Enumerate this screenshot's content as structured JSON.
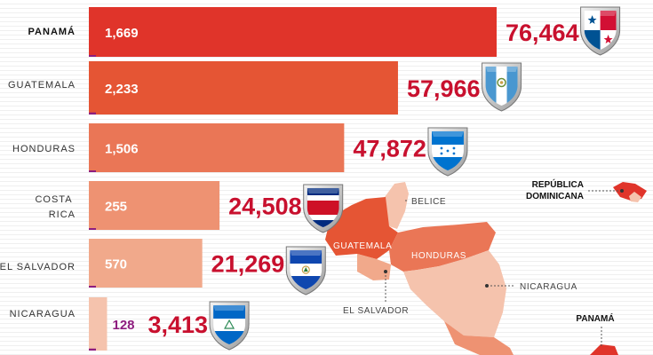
{
  "chart_data": {
    "type": "bar",
    "categories": [
      "PANAMÁ",
      "GUATEMALA",
      "HONDURAS",
      "COSTA RICA",
      "EL SALVADOR",
      "NICARAGUA"
    ],
    "series": [
      {
        "values": [
          1669,
          2233,
          1506,
          255,
          570,
          128
        ]
      },
      {
        "values": [
          76464,
          57966,
          47872,
          24508,
          21269,
          3413
        ]
      }
    ],
    "bar_labels": [
      "1,669",
      "2,233",
      "1,506",
      "255",
      "570",
      "128"
    ],
    "totals": [
      "76,464",
      "57,966",
      "47,872",
      "24,508",
      "21,269",
      "3,413"
    ],
    "colors": {
      "bars": [
        "#e0342a",
        "#e55534",
        "#ea7656",
        "#ee9272",
        "#f1a98b",
        "#f5c3ad"
      ],
      "accent": "#8e1d7f",
      "value_red": "#c8102e"
    }
  },
  "map": {
    "labels": [
      "BELICE",
      "GUATEMALA",
      "HONDURAS",
      "EL SALVADOR",
      "NICARAGUA",
      "REPÚBLICA",
      "DOMINICANA",
      "PANAMÁ"
    ]
  },
  "icons": [
    "panama-flag-icon",
    "guatemala-flag-icon",
    "honduras-flag-icon",
    "costa-rica-flag-icon",
    "el-salvador-flag-icon",
    "nicaragua-flag-icon"
  ]
}
